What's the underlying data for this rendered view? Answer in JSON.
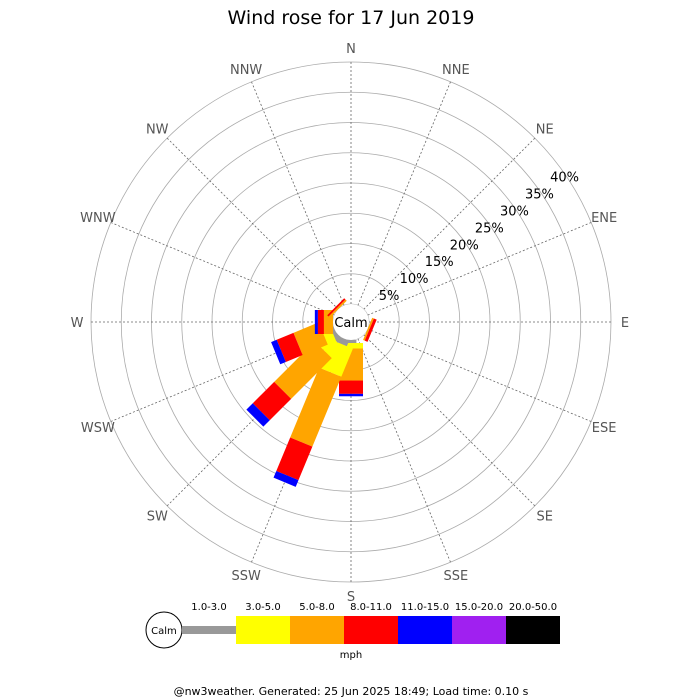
{
  "chart_data": {
    "type": "wind-rose",
    "title": "Wind rose for 17 Jun 2019",
    "directions": [
      "N",
      "NNE",
      "NE",
      "ENE",
      "E",
      "ESE",
      "SE",
      "SSE",
      "S",
      "SSW",
      "SW",
      "WSW",
      "W",
      "WNW",
      "NW",
      "NNW"
    ],
    "radial_ticks": [
      "5%",
      "10%",
      "15%",
      "20%",
      "25%",
      "30%",
      "35%",
      "40%"
    ],
    "radial_max": 40,
    "calm_label": "Calm",
    "unit_label": "mph",
    "speed_bins": [
      {
        "label": "1.0-3.0",
        "color": "#999999"
      },
      {
        "label": "3.0-5.0",
        "color": "#ffff00"
      },
      {
        "label": "5.0-8.0",
        "color": "#ffa500"
      },
      {
        "label": "8.0-11.0",
        "color": "#ff0000"
      },
      {
        "label": "11.0-15.0",
        "color": "#0000ff"
      },
      {
        "label": "15.0-20.0",
        "color": "#a020f0"
      },
      {
        "label": "20.0-50.0",
        "color": "#000000"
      }
    ],
    "series": [
      {
        "direction": "N",
        "values": [
          0,
          0,
          0,
          0,
          0,
          0,
          0
        ]
      },
      {
        "direction": "NNE",
        "values": [
          0,
          0,
          0,
          0,
          0,
          0,
          0
        ]
      },
      {
        "direction": "NE",
        "values": [
          0,
          0,
          0,
          0,
          0,
          0,
          0
        ]
      },
      {
        "direction": "ENE",
        "values": [
          0,
          0,
          0,
          0,
          0,
          0,
          0
        ]
      },
      {
        "direction": "E",
        "values": [
          0,
          0,
          0,
          0,
          0,
          0,
          0
        ]
      },
      {
        "direction": "ESE",
        "values": [
          0,
          0,
          0.3,
          0.5,
          0,
          0,
          0
        ]
      },
      {
        "direction": "SE",
        "values": [
          0,
          0,
          0,
          0,
          0,
          0,
          0
        ]
      },
      {
        "direction": "SSE",
        "values": [
          0,
          0,
          0,
          0,
          0,
          0,
          0
        ]
      },
      {
        "direction": "S",
        "values": [
          0.5,
          0.9,
          5.3,
          2.2,
          0.4,
          0,
          0
        ]
      },
      {
        "direction": "SSW",
        "values": [
          1.0,
          5.0,
          12.5,
          6.0,
          1.2,
          0,
          0
        ]
      },
      {
        "direction": "SW",
        "values": [
          1.0,
          2.5,
          9.5,
          5.0,
          1.5,
          0,
          0
        ]
      },
      {
        "direction": "WSW",
        "values": [
          0.5,
          1.5,
          4.5,
          3.0,
          1.0,
          0,
          0
        ]
      },
      {
        "direction": "W",
        "values": [
          0,
          0,
          1.5,
          1.0,
          0.5,
          0,
          0
        ]
      },
      {
        "direction": "WNW",
        "values": [
          0,
          0,
          0,
          0,
          0,
          0,
          0
        ]
      },
      {
        "direction": "NW",
        "values": [
          0,
          0,
          0.3,
          0.3,
          0,
          0,
          0
        ]
      },
      {
        "direction": "NNW",
        "values": [
          0,
          0,
          0,
          0,
          0,
          0,
          0
        ]
      }
    ]
  },
  "footer": {
    "credit": "@nw3weather. Generated: 25 Jun 2025 18:49; Load time: 0.10 s"
  }
}
